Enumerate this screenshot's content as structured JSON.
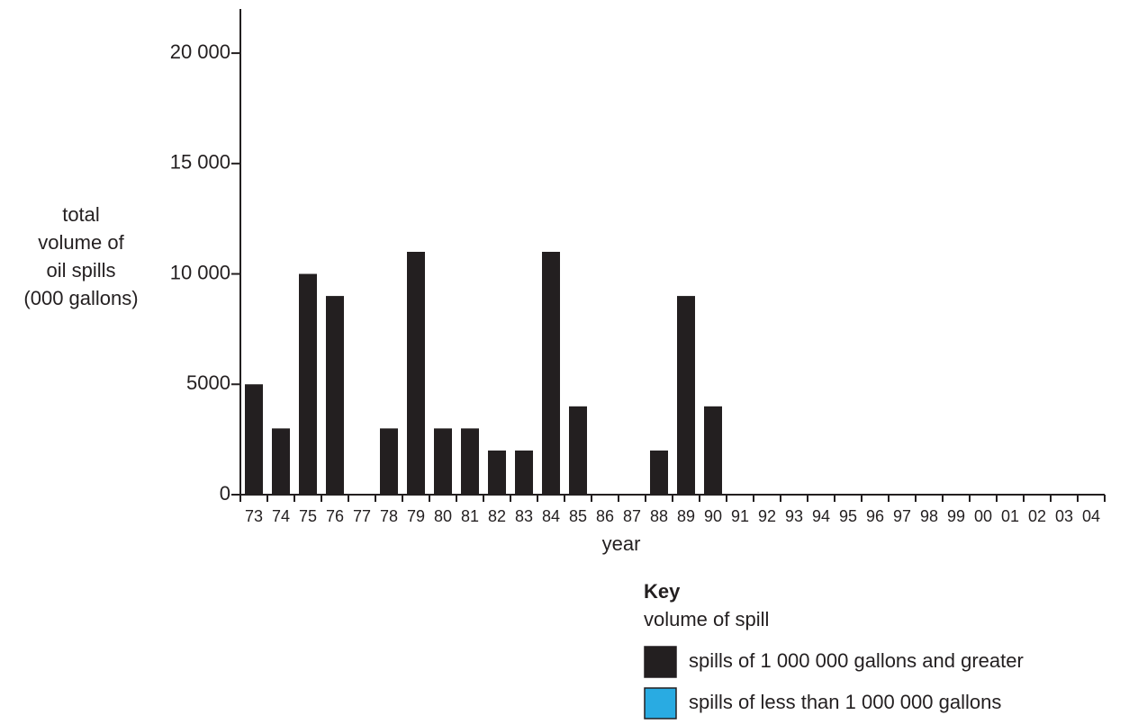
{
  "chart_data": {
    "type": "bar",
    "y_label": [
      "total",
      "volume of",
      "oil spills",
      "(000 gallons)"
    ],
    "x_label": "year",
    "categories": [
      "73",
      "74",
      "75",
      "76",
      "77",
      "78",
      "79",
      "80",
      "81",
      "82",
      "83",
      "84",
      "85",
      "86",
      "87",
      "88",
      "89",
      "90",
      "91",
      "92",
      "93",
      "94",
      "95",
      "96",
      "97",
      "98",
      "99",
      "00",
      "01",
      "02",
      "03",
      "04"
    ],
    "series": [
      {
        "name": "spills of 1 000 000 gallons and greater",
        "color": "#231f20",
        "values": [
          5000,
          3000,
          10000,
          9000,
          0,
          3000,
          11000,
          3000,
          3000,
          2000,
          2000,
          11000,
          4000,
          0,
          0,
          2000,
          9000,
          4000,
          null,
          null,
          null,
          null,
          null,
          null,
          null,
          null,
          null,
          null,
          null,
          null,
          null,
          null
        ]
      },
      {
        "name": "spills of less than 1 000 000 gallons",
        "color": "#29abe2",
        "values": [
          null,
          null,
          null,
          null,
          null,
          null,
          null,
          null,
          null,
          null,
          null,
          null,
          null,
          null,
          null,
          null,
          null,
          null,
          null,
          null,
          null,
          null,
          null,
          null,
          null,
          null,
          null,
          null,
          null,
          null,
          null,
          null
        ]
      }
    ],
    "legend_title": "Key",
    "legend_subtitle": "volume of spill",
    "ylim": [
      0,
      22000
    ],
    "yticks": [
      0,
      5000,
      {
        "value": 10000,
        "label": "10 000"
      },
      {
        "value": 15000,
        "label": "15 000"
      },
      {
        "value": 20000,
        "label": "20 000"
      }
    ]
  }
}
